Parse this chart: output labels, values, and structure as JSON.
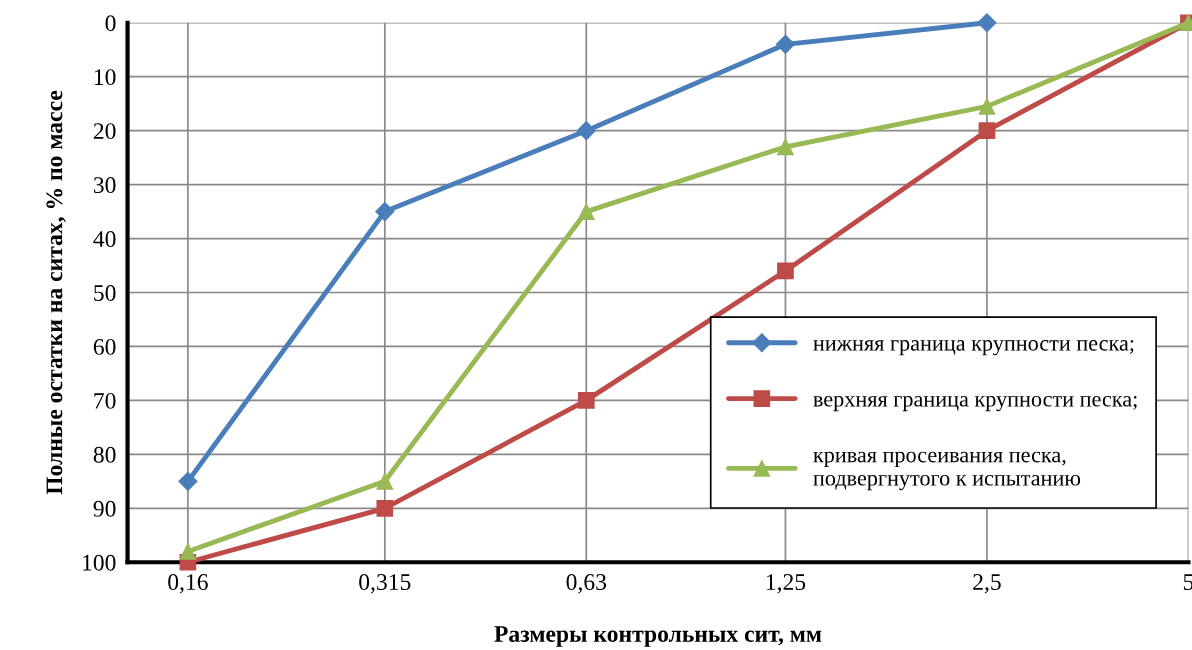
{
  "chart_data": {
    "type": "line",
    "xlabel": "Размеры контрольных сит, мм",
    "ylabel": "Полные остатки на ситах, % по массе",
    "log": "x",
    "xlim": [
      0.13,
      5
    ],
    "ylim": [
      100,
      0
    ],
    "xticks": [
      {
        "value": 0.16,
        "label": "0,16"
      },
      {
        "value": 0.315,
        "label": "0,315"
      },
      {
        "value": 0.63,
        "label": "0,63"
      },
      {
        "value": 1.25,
        "label": "1,25"
      },
      {
        "value": 2.5,
        "label": "2,5"
      },
      {
        "value": 5,
        "label": "5"
      }
    ],
    "yticks": [
      0,
      10,
      20,
      30,
      40,
      50,
      60,
      70,
      80,
      90,
      100
    ],
    "grid": true,
    "legend": "bottom right",
    "series": [
      {
        "name": "нижняя граница крупности песка;",
        "color": "#4a7ebb",
        "marker": "diamond",
        "x": [
          0.16,
          0.315,
          0.63,
          1.25,
          2.5
        ],
        "values": [
          85,
          35,
          20,
          4,
          0
        ]
      },
      {
        "name": "верхняя граница крупности песка;",
        "color": "#be4b48",
        "marker": "square",
        "x": [
          0.16,
          0.315,
          0.63,
          1.25,
          2.5,
          5
        ],
        "values": [
          100,
          90,
          70,
          46,
          20,
          0
        ]
      },
      {
        "name": "кривая просеивания песка,\nподвергнутого к испытанию",
        "color": "#98b954",
        "marker": "triangle",
        "x": [
          0.16,
          0.315,
          0.63,
          1.25,
          2.5,
          5
        ],
        "values": [
          98,
          85,
          35,
          23,
          15.5,
          0
        ]
      }
    ]
  }
}
